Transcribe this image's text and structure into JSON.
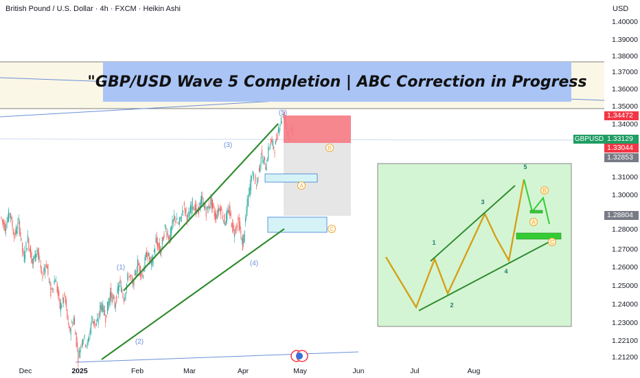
{
  "header": {
    "title": "British Pound / U.S. Dollar · 4h · FXCM · Heikin Ashi",
    "currency": "USD"
  },
  "banner": {
    "text": "\"GBP/USD Wave 5 Completion | ABC Correction in Progress"
  },
  "chart_data": {
    "type": "candlestick",
    "price_axis": {
      "ticks": [
        "1.40000",
        "1.39000",
        "1.38000",
        "1.37000",
        "1.36000",
        "1.35000",
        "1.34000",
        "1.31000",
        "1.30000",
        "1.28000",
        "1.27000",
        "1.26000",
        "1.25000",
        "1.24000",
        "1.23000",
        "1.22100",
        "1.21200"
      ],
      "range": [
        1.21,
        1.405
      ]
    },
    "time_axis": {
      "ticks": [
        "Dec",
        "2025",
        "Feb",
        "Mar",
        "Apr",
        "May",
        "Jun",
        "Jul",
        "Aug"
      ]
    },
    "price_labels": [
      {
        "value": "1.34472",
        "color": "#f23645"
      },
      {
        "value": "1.33129",
        "color": "#1f9d63"
      },
      {
        "value": "1.33044",
        "color": "#f23645"
      },
      {
        "value": "1.32853",
        "color": "#787b86"
      },
      {
        "value": "1.28804",
        "color": "#787b86"
      }
    ],
    "symbol": "GBPUSD",
    "price_path": [
      [
        1.287,
        1.281
      ],
      [
        1.281,
        1.29
      ],
      [
        1.29,
        1.276
      ],
      [
        1.276,
        1.284
      ],
      [
        1.284,
        1.265
      ],
      [
        1.265,
        1.275
      ],
      [
        1.275,
        1.262
      ],
      [
        1.262,
        1.27
      ],
      [
        1.27,
        1.255
      ],
      [
        1.255,
        1.262
      ],
      [
        1.262,
        1.246
      ],
      [
        1.246,
        1.254
      ],
      [
        1.254,
        1.238
      ],
      [
        1.238,
        1.244
      ],
      [
        1.244,
        1.225
      ],
      [
        1.225,
        1.232
      ],
      [
        1.232,
        1.212
      ],
      [
        1.212,
        1.223
      ],
      [
        1.223,
        1.218
      ],
      [
        1.218,
        1.232
      ],
      [
        1.232,
        1.228
      ],
      [
        1.228,
        1.24
      ],
      [
        1.24,
        1.233
      ],
      [
        1.233,
        1.246
      ],
      [
        1.246,
        1.239
      ],
      [
        1.239,
        1.251
      ],
      [
        1.251,
        1.243
      ],
      [
        1.243,
        1.256
      ],
      [
        1.256,
        1.25
      ],
      [
        1.25,
        1.262
      ],
      [
        1.262,
        1.255
      ],
      [
        1.255,
        1.268
      ],
      [
        1.268,
        1.261
      ],
      [
        1.261,
        1.274
      ],
      [
        1.274,
        1.268
      ],
      [
        1.268,
        1.281
      ],
      [
        1.281,
        1.275
      ],
      [
        1.275,
        1.287
      ],
      [
        1.287,
        1.282
      ],
      [
        1.282,
        1.293
      ],
      [
        1.293,
        1.286
      ],
      [
        1.286,
        1.295
      ],
      [
        1.295,
        1.289
      ],
      [
        1.289,
        1.297
      ],
      [
        1.297,
        1.29
      ],
      [
        1.29,
        1.296
      ],
      [
        1.296,
        1.287
      ],
      [
        1.287,
        1.293
      ],
      [
        1.293,
        1.284
      ],
      [
        1.284,
        1.291
      ],
      [
        1.291,
        1.278
      ],
      [
        1.278,
        1.285
      ],
      [
        1.285,
        1.271
      ],
      [
        1.271,
        1.295
      ],
      [
        1.295,
        1.312
      ],
      [
        1.312,
        1.305
      ],
      [
        1.305,
        1.322
      ],
      [
        1.322,
        1.316
      ],
      [
        1.316,
        1.33
      ],
      [
        1.33,
        1.326
      ],
      [
        1.326,
        1.34
      ],
      [
        1.34,
        1.345
      ],
      [
        1.345,
        1.333
      ],
      [
        1.333,
        1.338
      ],
      [
        1.338,
        1.331
      ],
      [
        1.331,
        1.334
      ],
      [
        1.334,
        1.33
      ]
    ],
    "wave_labels_main": [
      "(1)",
      "(2)",
      "(3)",
      "(4)",
      "(5)"
    ],
    "abc_labels_main": [
      "A",
      "B",
      "C"
    ],
    "inset": {
      "wave_labels": [
        "1",
        "2",
        "3",
        "4",
        "5"
      ],
      "abc_labels": [
        "A",
        "B",
        "C"
      ]
    }
  }
}
